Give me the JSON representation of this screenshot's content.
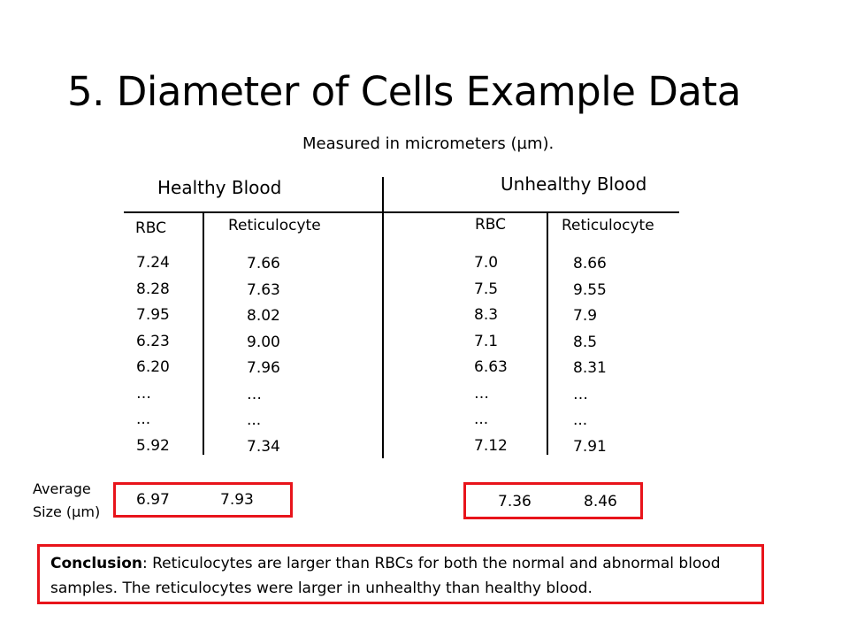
{
  "slide": {
    "title": "5. Diameter of Cells Example Data",
    "subtitle": "Measured in micrometers (µm)."
  },
  "groups": {
    "healthy": {
      "label": "Healthy Blood",
      "rbc_header": "RBC",
      "retic_header": "Reticulocyte",
      "rbc_values": [
        "7.24",
        "8.28",
        "7.95",
        "6.23",
        "6.20",
        "…",
        "...",
        "5.92"
      ],
      "retic_values": [
        "7.66",
        "7.63",
        "8.02",
        "9.00",
        "7.96",
        "…",
        "...",
        "7.34"
      ],
      "avg_rbc": "6.97",
      "avg_retic": "7.93"
    },
    "unhealthy": {
      "label": "Unhealthy Blood",
      "rbc_header": "RBC",
      "retic_header": "Reticulocyte",
      "rbc_values": [
        "7.0",
        "7.5",
        "8.3",
        "7.1",
        "6.63",
        "…",
        "...",
        "7.12"
      ],
      "retic_values": [
        "8.66",
        "9.55",
        "7.9",
        "8.5",
        "8.31",
        "…",
        "...",
        "7.91"
      ],
      "avg_rbc": "7.36",
      "avg_retic": "8.46"
    }
  },
  "average_label_line1": "Average",
  "average_label_line2": "Size (µm)",
  "conclusion": {
    "label": "Conclusion",
    "text": ": Reticulocytes are larger than RBCs for both the normal and abnormal blood samples. The reticulocytes  were larger in unhealthy  than healthy blood."
  },
  "accent_color": "#e8141b"
}
